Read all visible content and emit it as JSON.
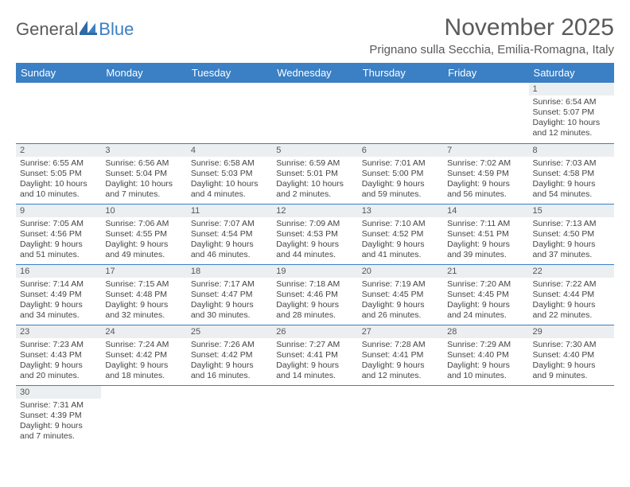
{
  "brand": {
    "part1": "General",
    "part2": "Blue"
  },
  "title": "November 2025",
  "location": "Prignano sulla Secchia, Emilia-Romagna, Italy",
  "colors": {
    "header_bg": "#3b7fc4",
    "header_text": "#ffffff",
    "daynum_bg": "#eceff1",
    "cell_border": "#3b7fc4",
    "body_text": "#444444",
    "title_text": "#5a5a5a"
  },
  "days": [
    "Sunday",
    "Monday",
    "Tuesday",
    "Wednesday",
    "Thursday",
    "Friday",
    "Saturday"
  ],
  "weeks": [
    [
      {
        "n": "",
        "sr": "",
        "ss": "",
        "dl": ""
      },
      {
        "n": "",
        "sr": "",
        "ss": "",
        "dl": ""
      },
      {
        "n": "",
        "sr": "",
        "ss": "",
        "dl": ""
      },
      {
        "n": "",
        "sr": "",
        "ss": "",
        "dl": ""
      },
      {
        "n": "",
        "sr": "",
        "ss": "",
        "dl": ""
      },
      {
        "n": "",
        "sr": "",
        "ss": "",
        "dl": ""
      },
      {
        "n": "1",
        "sr": "Sunrise: 6:54 AM",
        "ss": "Sunset: 5:07 PM",
        "dl": "Daylight: 10 hours and 12 minutes."
      }
    ],
    [
      {
        "n": "2",
        "sr": "Sunrise: 6:55 AM",
        "ss": "Sunset: 5:05 PM",
        "dl": "Daylight: 10 hours and 10 minutes."
      },
      {
        "n": "3",
        "sr": "Sunrise: 6:56 AM",
        "ss": "Sunset: 5:04 PM",
        "dl": "Daylight: 10 hours and 7 minutes."
      },
      {
        "n": "4",
        "sr": "Sunrise: 6:58 AM",
        "ss": "Sunset: 5:03 PM",
        "dl": "Daylight: 10 hours and 4 minutes."
      },
      {
        "n": "5",
        "sr": "Sunrise: 6:59 AM",
        "ss": "Sunset: 5:01 PM",
        "dl": "Daylight: 10 hours and 2 minutes."
      },
      {
        "n": "6",
        "sr": "Sunrise: 7:01 AM",
        "ss": "Sunset: 5:00 PM",
        "dl": "Daylight: 9 hours and 59 minutes."
      },
      {
        "n": "7",
        "sr": "Sunrise: 7:02 AM",
        "ss": "Sunset: 4:59 PM",
        "dl": "Daylight: 9 hours and 56 minutes."
      },
      {
        "n": "8",
        "sr": "Sunrise: 7:03 AM",
        "ss": "Sunset: 4:58 PM",
        "dl": "Daylight: 9 hours and 54 minutes."
      }
    ],
    [
      {
        "n": "9",
        "sr": "Sunrise: 7:05 AM",
        "ss": "Sunset: 4:56 PM",
        "dl": "Daylight: 9 hours and 51 minutes."
      },
      {
        "n": "10",
        "sr": "Sunrise: 7:06 AM",
        "ss": "Sunset: 4:55 PM",
        "dl": "Daylight: 9 hours and 49 minutes."
      },
      {
        "n": "11",
        "sr": "Sunrise: 7:07 AM",
        "ss": "Sunset: 4:54 PM",
        "dl": "Daylight: 9 hours and 46 minutes."
      },
      {
        "n": "12",
        "sr": "Sunrise: 7:09 AM",
        "ss": "Sunset: 4:53 PM",
        "dl": "Daylight: 9 hours and 44 minutes."
      },
      {
        "n": "13",
        "sr": "Sunrise: 7:10 AM",
        "ss": "Sunset: 4:52 PM",
        "dl": "Daylight: 9 hours and 41 minutes."
      },
      {
        "n": "14",
        "sr": "Sunrise: 7:11 AM",
        "ss": "Sunset: 4:51 PM",
        "dl": "Daylight: 9 hours and 39 minutes."
      },
      {
        "n": "15",
        "sr": "Sunrise: 7:13 AM",
        "ss": "Sunset: 4:50 PM",
        "dl": "Daylight: 9 hours and 37 minutes."
      }
    ],
    [
      {
        "n": "16",
        "sr": "Sunrise: 7:14 AM",
        "ss": "Sunset: 4:49 PM",
        "dl": "Daylight: 9 hours and 34 minutes."
      },
      {
        "n": "17",
        "sr": "Sunrise: 7:15 AM",
        "ss": "Sunset: 4:48 PM",
        "dl": "Daylight: 9 hours and 32 minutes."
      },
      {
        "n": "18",
        "sr": "Sunrise: 7:17 AM",
        "ss": "Sunset: 4:47 PM",
        "dl": "Daylight: 9 hours and 30 minutes."
      },
      {
        "n": "19",
        "sr": "Sunrise: 7:18 AM",
        "ss": "Sunset: 4:46 PM",
        "dl": "Daylight: 9 hours and 28 minutes."
      },
      {
        "n": "20",
        "sr": "Sunrise: 7:19 AM",
        "ss": "Sunset: 4:45 PM",
        "dl": "Daylight: 9 hours and 26 minutes."
      },
      {
        "n": "21",
        "sr": "Sunrise: 7:20 AM",
        "ss": "Sunset: 4:45 PM",
        "dl": "Daylight: 9 hours and 24 minutes."
      },
      {
        "n": "22",
        "sr": "Sunrise: 7:22 AM",
        "ss": "Sunset: 4:44 PM",
        "dl": "Daylight: 9 hours and 22 minutes."
      }
    ],
    [
      {
        "n": "23",
        "sr": "Sunrise: 7:23 AM",
        "ss": "Sunset: 4:43 PM",
        "dl": "Daylight: 9 hours and 20 minutes."
      },
      {
        "n": "24",
        "sr": "Sunrise: 7:24 AM",
        "ss": "Sunset: 4:42 PM",
        "dl": "Daylight: 9 hours and 18 minutes."
      },
      {
        "n": "25",
        "sr": "Sunrise: 7:26 AM",
        "ss": "Sunset: 4:42 PM",
        "dl": "Daylight: 9 hours and 16 minutes."
      },
      {
        "n": "26",
        "sr": "Sunrise: 7:27 AM",
        "ss": "Sunset: 4:41 PM",
        "dl": "Daylight: 9 hours and 14 minutes."
      },
      {
        "n": "27",
        "sr": "Sunrise: 7:28 AM",
        "ss": "Sunset: 4:41 PM",
        "dl": "Daylight: 9 hours and 12 minutes."
      },
      {
        "n": "28",
        "sr": "Sunrise: 7:29 AM",
        "ss": "Sunset: 4:40 PM",
        "dl": "Daylight: 9 hours and 10 minutes."
      },
      {
        "n": "29",
        "sr": "Sunrise: 7:30 AM",
        "ss": "Sunset: 4:40 PM",
        "dl": "Daylight: 9 hours and 9 minutes."
      }
    ],
    [
      {
        "n": "30",
        "sr": "Sunrise: 7:31 AM",
        "ss": "Sunset: 4:39 PM",
        "dl": "Daylight: 9 hours and 7 minutes."
      },
      {
        "n": "",
        "sr": "",
        "ss": "",
        "dl": ""
      },
      {
        "n": "",
        "sr": "",
        "ss": "",
        "dl": ""
      },
      {
        "n": "",
        "sr": "",
        "ss": "",
        "dl": ""
      },
      {
        "n": "",
        "sr": "",
        "ss": "",
        "dl": ""
      },
      {
        "n": "",
        "sr": "",
        "ss": "",
        "dl": ""
      },
      {
        "n": "",
        "sr": "",
        "ss": "",
        "dl": ""
      }
    ]
  ]
}
